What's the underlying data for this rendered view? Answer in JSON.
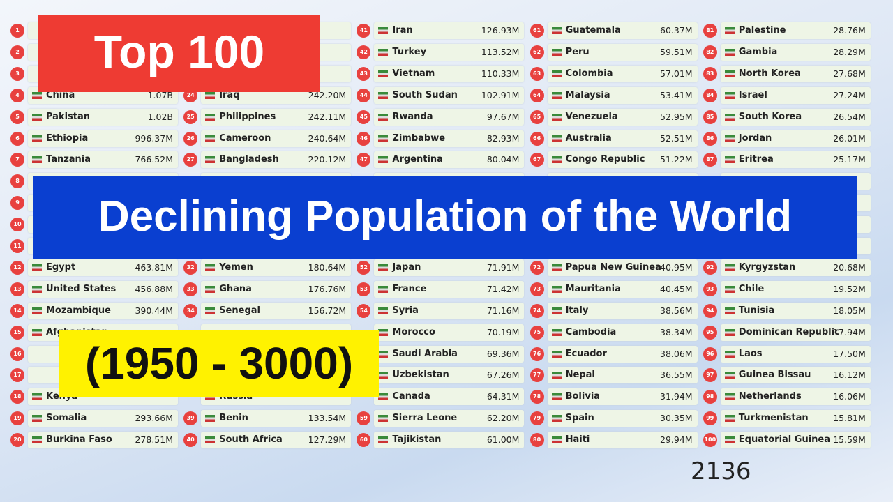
{
  "header": {
    "title": "Top 100",
    "banner": "Declining Population of the World",
    "range": "(1950 - 3000)",
    "year": "2136"
  },
  "columns": [
    [
      {
        "rank": "1"
      },
      {
        "rank": "2"
      },
      {
        "rank": "3"
      },
      {
        "rank": "4",
        "name": "China",
        "value": "1.07B"
      },
      {
        "rank": "5",
        "name": "Pakistan",
        "value": "1.02B"
      },
      {
        "rank": "6",
        "name": "Ethiopia",
        "value": "996.37M"
      },
      {
        "rank": "7",
        "name": "Tanzania",
        "value": "766.52M"
      },
      {
        "rank": "8"
      },
      {
        "rank": "9"
      },
      {
        "rank": "10"
      },
      {
        "rank": "11"
      },
      {
        "rank": "12",
        "name": "Egypt",
        "value": "463.81M"
      },
      {
        "rank": "13",
        "name": "United States",
        "value": "456.88M"
      },
      {
        "rank": "14",
        "name": "Mozambique",
        "value": "390.44M"
      },
      {
        "rank": "15",
        "name": "Afghanistan"
      },
      {
        "rank": "16"
      },
      {
        "rank": "17"
      },
      {
        "rank": "18",
        "name": "Kenya"
      },
      {
        "rank": "19",
        "name": "Somalia",
        "value": "293.66M"
      },
      {
        "rank": "20",
        "name": "Burkina Faso",
        "value": "278.51M"
      }
    ],
    [
      null,
      null,
      null,
      {
        "rank": "24",
        "name": "Iraq",
        "value": "242.20M"
      },
      {
        "rank": "25",
        "name": "Philippines",
        "value": "242.11M"
      },
      {
        "rank": "26",
        "name": "Cameroon",
        "value": "240.64M"
      },
      {
        "rank": "27",
        "name": "Bangladesh",
        "value": "220.12M"
      },
      null,
      null,
      null,
      null,
      {
        "rank": "32",
        "name": "Yemen",
        "value": "180.64M"
      },
      {
        "rank": "33",
        "name": "Ghana",
        "value": "176.76M"
      },
      {
        "rank": "34",
        "name": "Senegal",
        "value": "156.72M"
      },
      null,
      null,
      null,
      {
        "name": "Russia"
      },
      {
        "rank": "39",
        "name": "Benin",
        "value": "133.54M"
      },
      {
        "rank": "40",
        "name": "South Africa",
        "value": "127.29M"
      }
    ],
    [
      {
        "rank": "41",
        "name": "Iran",
        "value": "126.93M"
      },
      {
        "rank": "42",
        "name": "Turkey",
        "value": "113.52M"
      },
      {
        "rank": "43",
        "name": "Vietnam",
        "value": "110.33M"
      },
      {
        "rank": "44",
        "name": "South Sudan",
        "value": "102.91M"
      },
      {
        "rank": "45",
        "name": "Rwanda",
        "value": "97.67M"
      },
      {
        "rank": "46",
        "name": "Zimbabwe",
        "value": "82.93M"
      },
      {
        "rank": "47",
        "name": "Argentina",
        "value": "80.04M"
      },
      null,
      null,
      null,
      null,
      {
        "rank": "52",
        "name": "Japan",
        "value": "71.91M"
      },
      {
        "rank": "53",
        "name": "France",
        "value": "71.42M"
      },
      {
        "rank": "54",
        "name": "Syria",
        "value": "71.16M"
      },
      {
        "name": "Morocco",
        "value": "70.19M"
      },
      {
        "name": "Saudi Arabia",
        "value": "69.36M"
      },
      {
        "name": "Uzbekistan",
        "value": "67.26M"
      },
      {
        "name": "Canada",
        "value": "64.31M"
      },
      {
        "rank": "59",
        "name": "Sierra Leone",
        "value": "62.20M"
      },
      {
        "rank": "60",
        "name": "Tajikistan",
        "value": "61.00M"
      }
    ],
    [
      {
        "rank": "61",
        "name": "Guatemala",
        "value": "60.37M"
      },
      {
        "rank": "62",
        "name": "Peru",
        "value": "59.51M"
      },
      {
        "rank": "63",
        "name": "Colombia",
        "value": "57.01M"
      },
      {
        "rank": "64",
        "name": "Malaysia",
        "value": "53.41M"
      },
      {
        "rank": "65",
        "name": "Venezuela",
        "value": "52.95M"
      },
      {
        "rank": "66",
        "name": "Australia",
        "value": "52.51M"
      },
      {
        "rank": "67",
        "name": "Congo Republic",
        "value": "51.22M"
      },
      null,
      null,
      null,
      null,
      {
        "rank": "72",
        "name": "Papua New Guinea",
        "value": "40.95M"
      },
      {
        "rank": "73",
        "name": "Mauritania",
        "value": "40.45M"
      },
      {
        "rank": "74",
        "name": "Italy",
        "value": "38.56M"
      },
      {
        "rank": "75",
        "name": "Cambodia",
        "value": "38.34M"
      },
      {
        "rank": "76",
        "name": "Ecuador",
        "value": "38.06M"
      },
      {
        "rank": "77",
        "name": "Nepal",
        "value": "36.55M"
      },
      {
        "rank": "78",
        "name": "Bolivia",
        "value": "31.94M"
      },
      {
        "rank": "79",
        "name": "Spain",
        "value": "30.35M"
      },
      {
        "rank": "80",
        "name": "Haiti",
        "value": "29.94M"
      }
    ],
    [
      {
        "rank": "81",
        "name": "Palestine",
        "value": "28.76M"
      },
      {
        "rank": "82",
        "name": "Gambia",
        "value": "28.29M"
      },
      {
        "rank": "83",
        "name": "North Korea",
        "value": "27.68M"
      },
      {
        "rank": "84",
        "name": "Israel",
        "value": "27.24M"
      },
      {
        "rank": "85",
        "name": "South Korea",
        "value": "26.54M"
      },
      {
        "rank": "86",
        "name": "Jordan",
        "value": "26.01M"
      },
      {
        "rank": "87",
        "name": "Eritrea",
        "value": "25.17M"
      },
      null,
      null,
      null,
      null,
      {
        "rank": "92",
        "name": "Kyrgyzstan",
        "value": "20.68M"
      },
      {
        "rank": "93",
        "name": "Chile",
        "value": "19.52M"
      },
      {
        "rank": "94",
        "name": "Tunisia",
        "value": "18.05M"
      },
      {
        "rank": "95",
        "name": "Dominican Republic",
        "value": "17.94M"
      },
      {
        "rank": "96",
        "name": "Laos",
        "value": "17.50M"
      },
      {
        "rank": "97",
        "name": "Guinea Bissau",
        "value": "16.12M"
      },
      {
        "rank": "98",
        "name": "Netherlands",
        "value": "16.06M"
      },
      {
        "rank": "99",
        "name": "Turkmenistan",
        "value": "15.81M"
      },
      {
        "rank": "100",
        "name": "Equatorial Guinea",
        "value": "15.59M"
      }
    ]
  ]
}
